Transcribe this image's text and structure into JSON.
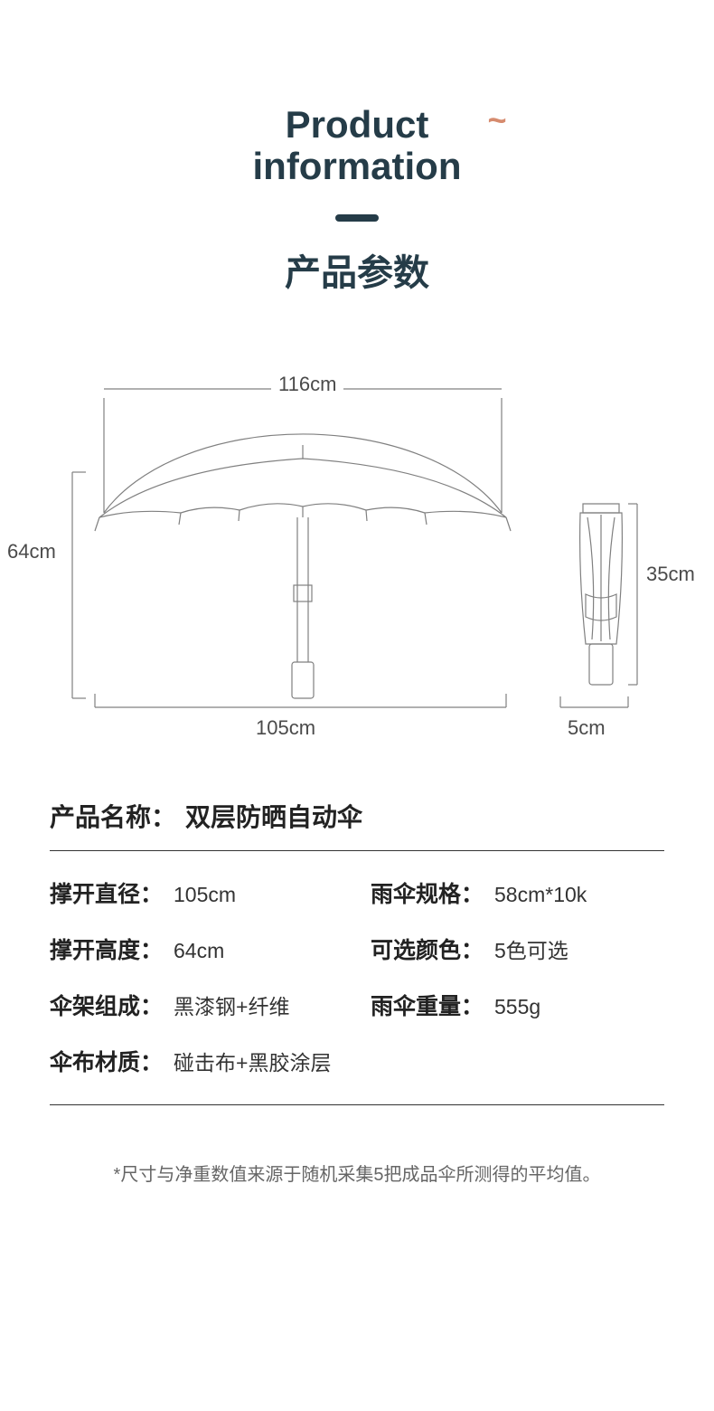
{
  "header": {
    "title_en_line1": "Product",
    "title_en_line2": "information",
    "title_cn": "产品参数",
    "tilde_color": "#d68b6e",
    "title_color": "#253c48"
  },
  "diagram": {
    "arc_span": "116cm",
    "open_height": "64cm",
    "open_width": "105cm",
    "folded_height": "35cm",
    "folded_width": "5cm",
    "line_color": "#808080",
    "stroke_width": 1.2
  },
  "product": {
    "name_label": "产品名称：",
    "name_value": "双层防晒自动伞"
  },
  "specs": [
    {
      "label": "撑开直径：",
      "value": "105cm"
    },
    {
      "label": "雨伞规格：",
      "value": "58cm*10k"
    },
    {
      "label": "撑开高度：",
      "value": "64cm"
    },
    {
      "label": "可选颜色：",
      "value": "5色可选"
    },
    {
      "label": "伞架组成：",
      "value": "黑漆钢+纤维"
    },
    {
      "label": "雨伞重量：",
      "value": "555g"
    },
    {
      "label": "伞布材质：",
      "value": "碰击布+黑胶涂层",
      "full": true
    }
  ],
  "footnote": "*尺寸与净重数值来源于随机采集5把成品伞所测得的平均值。"
}
